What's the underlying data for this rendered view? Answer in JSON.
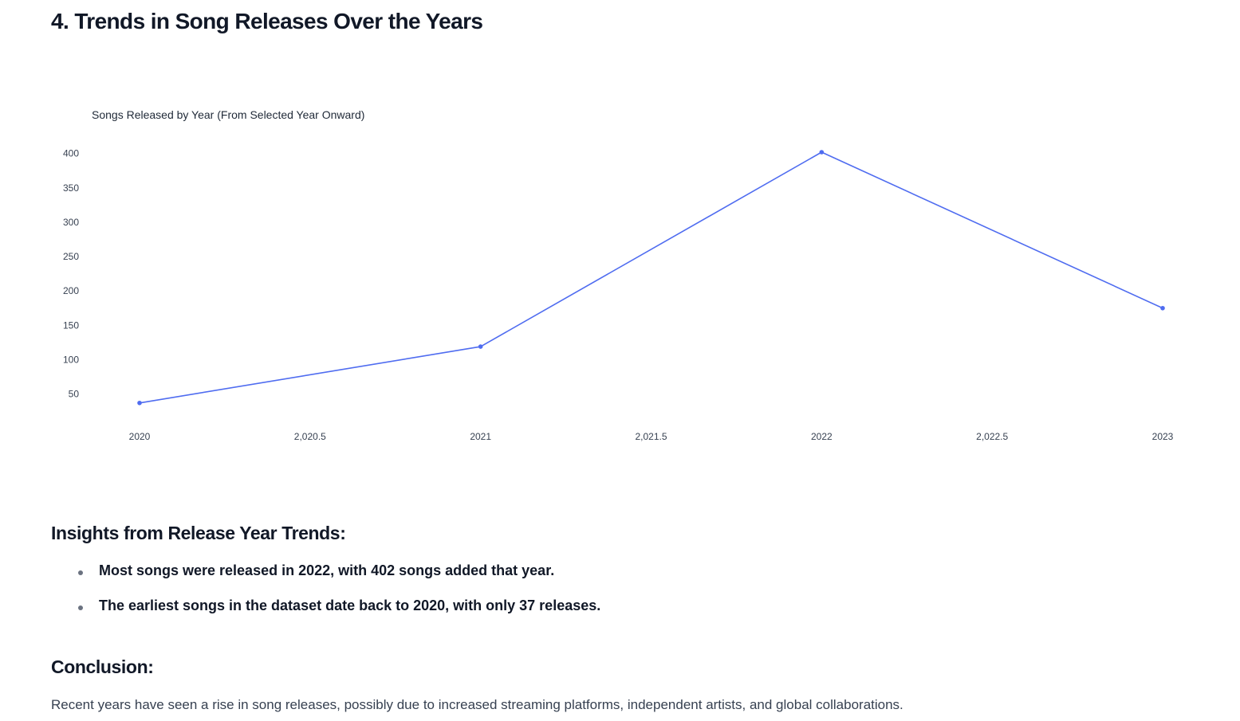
{
  "page": {
    "title": "4. Trends in Song Releases Over the Years"
  },
  "insights": {
    "heading": "Insights from Release Year Trends:",
    "items": [
      "Most songs were released in 2022, with 402 songs added that year.",
      "The earliest songs in the dataset date back to 2020, with only 37 releases."
    ]
  },
  "conclusion": {
    "heading": "Conclusion:",
    "text": "Recent years have seen a rise in song releases, possibly due to increased streaming platforms, independent artists, and global collaborations."
  },
  "chart_data": {
    "type": "line",
    "title": "Songs Released by Year (From Selected Year Onward)",
    "xlabel": "",
    "ylabel": "",
    "x": [
      2020,
      2021,
      2022,
      2023
    ],
    "series": [
      {
        "values": [
          37,
          119,
          402,
          175
        ]
      }
    ],
    "xlim": [
      2020,
      2023
    ],
    "ylim": [
      24,
      402
    ],
    "x_ticks": [
      2020,
      2020.5,
      2021,
      2021.5,
      2022,
      2022.5,
      2023
    ],
    "x_tick_labels": [
      "2020",
      "2,020.5",
      "2021",
      "2,021.5",
      "2022",
      "2,022.5",
      "2023"
    ],
    "y_ticks": [
      50,
      100,
      150,
      200,
      250,
      300,
      350,
      400
    ],
    "y_tick_labels": [
      "50",
      "100",
      "150",
      "200",
      "250",
      "300",
      "350",
      "400"
    ],
    "grid": false,
    "legend": "none",
    "line_color": "#4f6cf0"
  }
}
